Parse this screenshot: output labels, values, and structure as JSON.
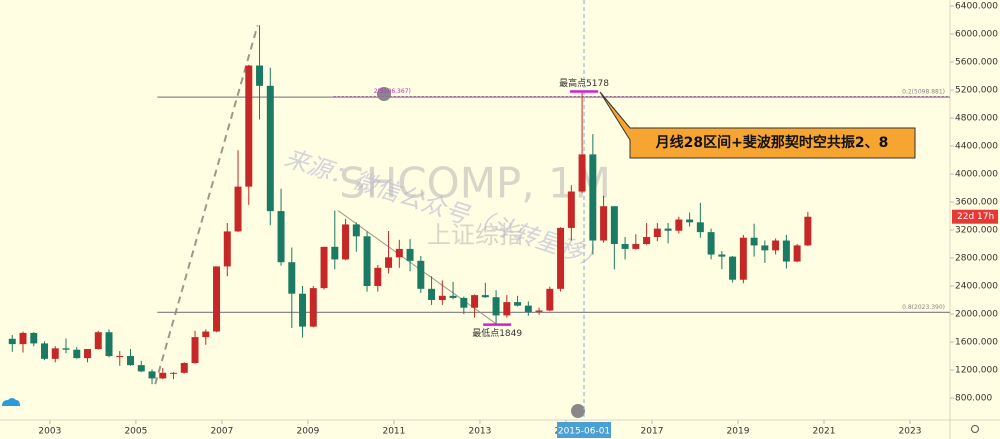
{
  "chart_data": {
    "type": "candlestick",
    "title": "SHCOMP, 1M",
    "subtitle": "上证综指",
    "watermark": "来源：微信公众号（斗转星移）",
    "up_color": "#c62828",
    "down_color": "#1b7a63",
    "x": [
      2002.125,
      2002.375,
      2002.625,
      2002.875,
      2003.125,
      2003.375,
      2003.625,
      2003.875,
      2004.125,
      2004.375,
      2004.625,
      2004.875,
      2005.125,
      2005.375,
      2005.625,
      2005.875,
      2006.125,
      2006.375,
      2006.625,
      2006.875,
      2007.125,
      2007.375,
      2007.625,
      2007.875,
      2008.125,
      2008.375,
      2008.625,
      2008.875,
      2009.125,
      2009.375,
      2009.625,
      2009.875,
      2010.125,
      2010.375,
      2010.625,
      2010.875,
      2011.125,
      2011.375,
      2011.625,
      2011.875,
      2012.125,
      2012.375,
      2012.625,
      2012.875,
      2013.125,
      2013.375,
      2013.625,
      2013.875,
      2014.125,
      2014.375,
      2014.625,
      2014.875,
      2015.125,
      2015.375,
      2015.625,
      2015.875,
      2016.125,
      2016.375,
      2016.625,
      2016.875,
      2017.125,
      2017.375,
      2017.625,
      2017.875,
      2018.125,
      2018.375,
      2018.625,
      2018.875,
      2019.125,
      2019.375,
      2019.625,
      2019.875,
      2020.125,
      2020.375,
      2020.625
    ],
    "open": [
      1646,
      1570,
      1730,
      1580,
      1360,
      1510,
      1490,
      1370,
      1500,
      1740,
      1400,
      1400,
      1270,
      1180,
      1080,
      1160,
      1160,
      1300,
      1670,
      1750,
      2680,
      3180,
      3820,
      5550,
      5260,
      3470,
      2740,
      2290,
      1820,
      2370,
      2960,
      2780,
      3280,
      3110,
      2400,
      2660,
      2810,
      2930,
      2760,
      2360,
      2200,
      2260,
      2230,
      2090,
      2270,
      2240,
      1980,
      2170,
      2120,
      2030,
      2050,
      2360,
      3230,
      3750,
      4280,
      3050,
      3540,
      3000,
      2930,
      3000,
      3100,
      3220,
      3190,
      3350,
      3310,
      3170,
      2850,
      2820,
      2490,
      3090,
      2980,
      2910,
      3050,
      2750,
      2980
    ],
    "high": [
      1700,
      1750,
      1740,
      1610,
      1540,
      1650,
      1530,
      1500,
      1760,
      1780,
      1470,
      1500,
      1330,
      1210,
      1230,
      1170,
      1310,
      1760,
      1780,
      2680,
      3300,
      4340,
      5560,
      6124,
      5520,
      3790,
      2950,
      2400,
      2400,
      2960,
      3478,
      3360,
      3310,
      3180,
      2700,
      3186,
      3060,
      3070,
      2830,
      2540,
      2480,
      2460,
      2250,
      2280,
      2445,
      2340,
      2270,
      2260,
      2180,
      2090,
      2390,
      3240,
      3840,
      5178,
      4570,
      3690,
      3540,
      3100,
      3140,
      3300,
      3300,
      3300,
      3390,
      3450,
      3587,
      3220,
      2900,
      2830,
      3130,
      3290,
      3050,
      3080,
      3130,
      3000,
      3460
    ],
    "low": [
      1460,
      1450,
      1540,
      1340,
      1310,
      1440,
      1360,
      1310,
      1490,
      1380,
      1260,
      1260,
      1170,
      998,
      1070,
      1070,
      1150,
      1290,
      1560,
      1740,
      2540,
      3170,
      3560,
      4780,
      3270,
      2690,
      1800,
      1664,
      1810,
      2350,
      2640,
      2770,
      2890,
      2320,
      2320,
      2580,
      2660,
      2610,
      2300,
      2130,
      2130,
      2210,
      1999,
      1949,
      2230,
      1849,
      1950,
      2110,
      1975,
      1990,
      2040,
      2320,
      3050,
      3730,
      2850,
      3020,
      2638,
      2780,
      2920,
      2990,
      3040,
      3010,
      3150,
      3250,
      3090,
      2780,
      2640,
      2450,
      2440,
      2820,
      2730,
      2850,
      2650,
      2740,
      2970
    ],
    "close": [
      1570,
      1730,
      1580,
      1360,
      1510,
      1490,
      1370,
      1500,
      1740,
      1400,
      1400,
      1270,
      1180,
      1080,
      1160,
      1160,
      1300,
      1670,
      1750,
      2680,
      3180,
      3820,
      5550,
      5260,
      3470,
      2740,
      2290,
      1820,
      2370,
      2960,
      2780,
      3280,
      3110,
      2400,
      2660,
      2810,
      2930,
      2760,
      2360,
      2200,
      2260,
      2230,
      2090,
      2270,
      2240,
      1980,
      2170,
      2120,
      2030,
      2050,
      2360,
      3230,
      3750,
      4280,
      3050,
      3540,
      3000,
      2930,
      3000,
      3100,
      3220,
      3190,
      3350,
      3310,
      3170,
      2850,
      2820,
      2490,
      3090,
      2980,
      2910,
      3050,
      2750,
      2980,
      3390
    ],
    "xlim": [
      2001.84,
      2023.93
    ],
    "xticks": [
      2003,
      2005,
      2007,
      2009,
      2011,
      2013,
      2015,
      2017,
      2019,
      2021,
      2023
    ],
    "ylim": [
      486,
      6486
    ],
    "yticks": [
      {
        "value": 800,
        "label": "800.000"
      },
      {
        "value": 1200,
        "label": "1200.000"
      },
      {
        "value": 1600,
        "label": "1600.000"
      },
      {
        "value": 2000,
        "label": "2000.000"
      },
      {
        "value": 2400,
        "label": "2400.000"
      },
      {
        "value": 2800,
        "label": "2800.000"
      },
      {
        "value": 3200,
        "label": "3200.000"
      },
      {
        "value": 3600,
        "label": "3600.000"
      },
      {
        "value": 4000,
        "label": "4000.000"
      },
      {
        "value": 4400,
        "label": "4400.000"
      },
      {
        "value": 4800,
        "label": "4800.000"
      },
      {
        "value": 5200,
        "label": "5200.000"
      },
      {
        "value": 5600,
        "label": "5600.000"
      },
      {
        "value": 6000,
        "label": "6000.000"
      },
      {
        "value": 6400,
        "label": "6400.000"
      }
    ],
    "levels": [
      {
        "value": 5106.367,
        "label": "2(5106.367)",
        "color": "#b03ab0",
        "style": "dotted",
        "x_start": 2009.6,
        "label_side": "left"
      },
      {
        "value": 5098.881,
        "label": "0.2(5098.881)",
        "color": "#8a8a8a",
        "style": "solid",
        "x_start": 2005.5,
        "label_side": "right"
      },
      {
        "value": 2023.39,
        "label": "0.8(2023.390)",
        "color": "#8a8a8a",
        "style": "solid",
        "x_start": 2005.5,
        "label_side": "right"
      }
    ],
    "trend_lines": [
      {
        "x1": 2005.45,
        "y1": 998,
        "x2": 2007.83,
        "y2": 6124,
        "color": "#9a9a8a",
        "style": "dashed"
      },
      {
        "x1": 2009.7,
        "y1": 3478,
        "x2": 2013.4,
        "y2": 1849,
        "color": "#9a9a8a",
        "style": "thin"
      }
    ],
    "annotations": [
      {
        "text": "最高点5178",
        "x": 2015.42,
        "value": 5178,
        "position": "above"
      },
      {
        "text": "最低点1849",
        "x": 2013.4,
        "value": 1849,
        "position": "below"
      }
    ],
    "callout": {
      "text": "月线28区间+斐波那契时空共振2、8",
      "x": 2015.55,
      "value": 5178
    },
    "crosshair": {
      "x": 2015.42,
      "label": "2015-06-01"
    },
    "countdown": "22d 17h"
  }
}
